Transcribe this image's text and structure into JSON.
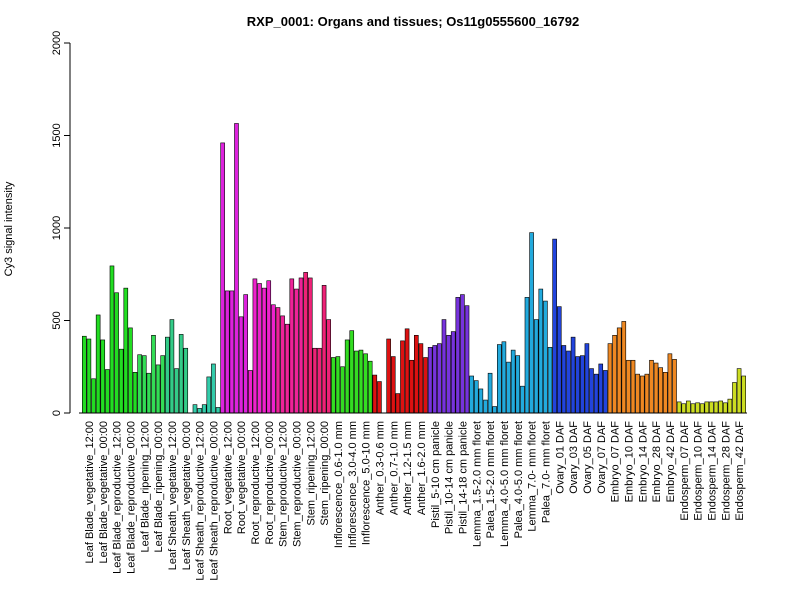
{
  "chart_data": {
    "type": "bar",
    "title": "RXP_0001: Organs and tissues; Os11g0555600_16792",
    "xlabel": "",
    "ylabel": "Cy3 signal intensity",
    "ylim": [
      0,
      2000
    ],
    "yticks": [
      0,
      500,
      1000,
      1500,
      2000
    ],
    "grid": false,
    "legend": "none",
    "groups": [
      {
        "label": "Leaf Blade_vegetative_12:00",
        "color": "#22dd22",
        "values": [
          415,
          400,
          185
        ]
      },
      {
        "label": "Leaf Blade_vegetative_00:00",
        "color": "#22dd22",
        "values": [
          530,
          395,
          235
        ]
      },
      {
        "label": "Leaf Blade_reproductive_12:00",
        "color": "#22dd22",
        "values": [
          795,
          650,
          345
        ]
      },
      {
        "label": "Leaf Blade_reproductive_00:00",
        "color": "#22dd22",
        "values": [
          675,
          460,
          220
        ]
      },
      {
        "label": "Leaf Blade_ripening_12:00",
        "color": "#33dd55",
        "values": [
          315,
          310,
          215
        ]
      },
      {
        "label": "Leaf Blade_ripening_00:00",
        "color": "#33dd55",
        "values": [
          420,
          260,
          310
        ]
      },
      {
        "label": "Leaf Sheath_vegetative_12:00",
        "color": "#33cc88",
        "values": [
          410,
          505,
          240
        ]
      },
      {
        "label": "Leaf Sheath_vegetative_00:00",
        "color": "#33cc88",
        "values": [
          425,
          350,
          0
        ]
      },
      {
        "label": "Leaf Sheath_reproductive_12:00",
        "color": "#33ccaa",
        "values": [
          45,
          25,
          45
        ]
      },
      {
        "label": "Leaf Sheath_reproductive_00:00",
        "color": "#33ccaa",
        "values": [
          195,
          265,
          30
        ]
      },
      {
        "label": "Root_vegetative_12:00",
        "color": "#dd22dd",
        "values": [
          1460,
          660,
          660
        ]
      },
      {
        "label": "Root_vegetative_00:00",
        "color": "#dd22dd",
        "values": [
          1565,
          520,
          640
        ]
      },
      {
        "label": "Root_reproductive_12:00",
        "color": "#ee22cc",
        "values": [
          230,
          725,
          700
        ]
      },
      {
        "label": "Root_reproductive_00:00",
        "color": "#ee22cc",
        "values": [
          675,
          715,
          585
        ]
      },
      {
        "label": "Stem_reproductive_12:00",
        "color": "#ee2299",
        "values": [
          570,
          525,
          480
        ]
      },
      {
        "label": "Stem_reproductive_00:00",
        "color": "#ee2299",
        "values": [
          725,
          670,
          730
        ]
      },
      {
        "label": "Stem_ripening_12:00",
        "color": "#ee2277",
        "values": [
          760,
          730,
          350
        ]
      },
      {
        "label": "Stem_ripening_00:00",
        "color": "#ee2277",
        "values": [
          350,
          690,
          505
        ]
      },
      {
        "label": "Inflorescence_0.6-1.0 mm",
        "color": "#33dd22",
        "values": [
          300,
          305,
          250
        ]
      },
      {
        "label": "Inflorescence_3.0-4.0 mm",
        "color": "#33dd22",
        "values": [
          395,
          445,
          335
        ]
      },
      {
        "label": "Inflorescence_5.0-10 mm",
        "color": "#33dd22",
        "values": [
          340,
          320,
          280
        ]
      },
      {
        "label": "Anther_0.3-0.6 mm",
        "color": "#dd1111",
        "values": [
          205,
          170,
          0
        ]
      },
      {
        "label": "Anther_0.7-1.0 mm",
        "color": "#dd1111",
        "values": [
          400,
          305,
          105
        ]
      },
      {
        "label": "Anther_1.2-1.5 mm",
        "color": "#dd1111",
        "values": [
          390,
          455,
          285
        ]
      },
      {
        "label": "Anther_1.6-2.0 mm",
        "color": "#dd1111",
        "values": [
          420,
          375,
          300
        ]
      },
      {
        "label": "Pistil_5-10 cm panicle",
        "color": "#7733dd",
        "values": [
          355,
          365,
          375
        ]
      },
      {
        "label": "Pistil_10-14 cm panicle",
        "color": "#7733dd",
        "values": [
          505,
          420,
          440
        ]
      },
      {
        "label": "Pistil_14-18 cm panicle",
        "color": "#7733dd",
        "values": [
          625,
          640,
          580
        ]
      },
      {
        "label": "Lemma_1.5-2.0 mm floret",
        "color": "#22aadd",
        "values": [
          200,
          175,
          130
        ]
      },
      {
        "label": "Palea_1.5-2.0 mm floret",
        "color": "#22aadd",
        "values": [
          70,
          215,
          35
        ]
      },
      {
        "label": "Lemma_4.0-5.0 mm floret",
        "color": "#22aadd",
        "values": [
          370,
          385,
          275
        ]
      },
      {
        "label": "Palea_4.0-5.0 mm floret",
        "color": "#22aadd",
        "values": [
          340,
          310,
          145
        ]
      },
      {
        "label": "Lemma_7.0- mm floret",
        "color": "#22aadd",
        "values": [
          625,
          975,
          505
        ]
      },
      {
        "label": "Palea_7.0- mm floret",
        "color": "#22aadd",
        "values": [
          670,
          605,
          355
        ]
      },
      {
        "label": "Ovary_01 DAF",
        "color": "#2244dd",
        "values": [
          940,
          575,
          365
        ]
      },
      {
        "label": "Ovary_03 DAF",
        "color": "#2244dd",
        "values": [
          335,
          410,
          305
        ]
      },
      {
        "label": "Ovary_05 DAF",
        "color": "#2244dd",
        "values": [
          310,
          375,
          240
        ]
      },
      {
        "label": "Ovary_07 DAF",
        "color": "#2244dd",
        "values": [
          210,
          265,
          230
        ]
      },
      {
        "label": "Embryo_07 DAF",
        "color": "#ee8822",
        "values": [
          375,
          420,
          460
        ]
      },
      {
        "label": "Embryo_10 DAF",
        "color": "#ee8822",
        "values": [
          495,
          285,
          285
        ]
      },
      {
        "label": "Embryo_14 DAF",
        "color": "#ee8822",
        "values": [
          210,
          200,
          210
        ]
      },
      {
        "label": "Embryo_28 DAF",
        "color": "#ee8822",
        "values": [
          285,
          270,
          245
        ]
      },
      {
        "label": "Embryo_42 DAF",
        "color": "#ee8822",
        "values": [
          220,
          320,
          290
        ]
      },
      {
        "label": "Endosperm_07 DAF",
        "color": "#ccdd22",
        "values": [
          60,
          50,
          65
        ]
      },
      {
        "label": "Endosperm_10 DAF",
        "color": "#ccdd22",
        "values": [
          50,
          55,
          50
        ]
      },
      {
        "label": "Endosperm_14 DAF",
        "color": "#ccdd22",
        "values": [
          60,
          60,
          60
        ]
      },
      {
        "label": "Endosperm_28 DAF",
        "color": "#ccdd22",
        "values": [
          65,
          55,
          75
        ]
      },
      {
        "label": "Endosperm_42 DAF",
        "color": "#ccdd22",
        "values": [
          165,
          240,
          200
        ]
      }
    ]
  }
}
